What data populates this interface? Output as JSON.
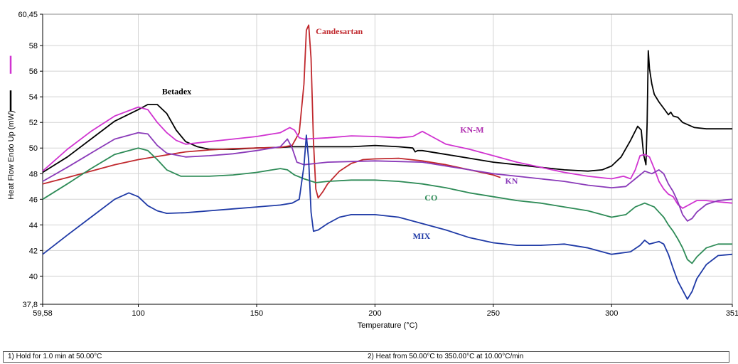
{
  "chart_data": {
    "type": "line",
    "xlabel": "Temperature (°C)",
    "ylabel": "Heat Flow Endo Up (mW)",
    "xlim": [
      59.58,
      351
    ],
    "ylim": [
      37.8,
      60.45
    ],
    "x_ticks": [
      "59,58",
      "100",
      "150",
      "200",
      "250",
      "300",
      "351"
    ],
    "y_ticks": [
      "37,8",
      "40",
      "42",
      "44",
      "46",
      "48",
      "50",
      "52",
      "54",
      "56",
      "58",
      "60,45"
    ],
    "grid": true,
    "legend": "left-side color swatches",
    "series": [
      {
        "name": "Betadex",
        "color": "#000000",
        "points": [
          [
            59.58,
            48.1
          ],
          [
            70,
            49.3
          ],
          [
            80,
            50.7
          ],
          [
            90,
            52.1
          ],
          [
            100,
            53.0
          ],
          [
            104,
            53.4
          ],
          [
            108,
            53.4
          ],
          [
            112,
            52.7
          ],
          [
            116,
            51.4
          ],
          [
            120,
            50.5
          ],
          [
            125,
            50.1
          ],
          [
            130,
            49.9
          ],
          [
            140,
            49.9
          ],
          [
            150,
            50.0
          ],
          [
            160,
            50.05
          ],
          [
            165,
            50.1
          ],
          [
            170,
            50.1
          ],
          [
            180,
            50.1
          ],
          [
            190,
            50.1
          ],
          [
            200,
            50.2
          ],
          [
            210,
            50.1
          ],
          [
            216,
            50.0
          ],
          [
            217,
            49.7
          ],
          [
            218,
            49.8
          ],
          [
            220,
            49.8
          ],
          [
            230,
            49.5
          ],
          [
            240,
            49.2
          ],
          [
            250,
            48.9
          ],
          [
            260,
            48.7
          ],
          [
            270,
            48.5
          ],
          [
            280,
            48.3
          ],
          [
            290,
            48.2
          ],
          [
            296,
            48.3
          ],
          [
            300,
            48.6
          ],
          [
            304,
            49.3
          ],
          [
            308,
            50.6
          ],
          [
            311,
            51.7
          ],
          [
            312.5,
            51.4
          ],
          [
            313.5,
            49.5
          ],
          [
            314.5,
            48.7
          ],
          [
            315,
            52.0
          ],
          [
            315.5,
            57.6
          ],
          [
            316,
            56.2
          ],
          [
            317,
            55.0
          ],
          [
            318,
            54.2
          ],
          [
            320,
            53.6
          ],
          [
            322,
            53.1
          ],
          [
            324,
            52.6
          ],
          [
            325,
            52.8
          ],
          [
            326,
            52.5
          ],
          [
            328,
            52.4
          ],
          [
            330,
            52.0
          ],
          [
            335,
            51.6
          ],
          [
            340,
            51.5
          ],
          [
            351,
            51.5
          ]
        ]
      },
      {
        "name": "Candesartan",
        "color": "#c0282d",
        "points": [
          [
            59.58,
            47.2
          ],
          [
            70,
            47.7
          ],
          [
            80,
            48.2
          ],
          [
            90,
            48.7
          ],
          [
            100,
            49.1
          ],
          [
            110,
            49.4
          ],
          [
            120,
            49.7
          ],
          [
            130,
            49.85
          ],
          [
            140,
            49.95
          ],
          [
            150,
            50.0
          ],
          [
            160,
            50.05
          ],
          [
            165,
            50.2
          ],
          [
            168,
            51.2
          ],
          [
            170,
            55.0
          ],
          [
            171,
            59.2
          ],
          [
            172,
            59.6
          ],
          [
            173,
            57.0
          ],
          [
            174,
            50.5
          ],
          [
            175,
            46.8
          ],
          [
            176,
            46.1
          ],
          [
            178,
            46.6
          ],
          [
            180,
            47.2
          ],
          [
            185,
            48.2
          ],
          [
            190,
            48.8
          ],
          [
            195,
            49.1
          ],
          [
            200,
            49.15
          ],
          [
            210,
            49.2
          ],
          [
            220,
            49.0
          ],
          [
            230,
            48.7
          ],
          [
            240,
            48.3
          ],
          [
            250,
            47.9
          ],
          [
            253,
            47.7
          ]
        ]
      },
      {
        "name": "KN-M",
        "color": "#d033d0",
        "points": [
          [
            59.58,
            48.2
          ],
          [
            70,
            49.9
          ],
          [
            80,
            51.3
          ],
          [
            90,
            52.5
          ],
          [
            100,
            53.2
          ],
          [
            104,
            53.0
          ],
          [
            108,
            52.0
          ],
          [
            112,
            51.2
          ],
          [
            116,
            50.6
          ],
          [
            120,
            50.3
          ],
          [
            130,
            50.5
          ],
          [
            140,
            50.7
          ],
          [
            150,
            50.9
          ],
          [
            160,
            51.2
          ],
          [
            164,
            51.6
          ],
          [
            166,
            51.4
          ],
          [
            168,
            50.8
          ],
          [
            170,
            50.7
          ],
          [
            180,
            50.8
          ],
          [
            190,
            50.95
          ],
          [
            200,
            50.9
          ],
          [
            210,
            50.8
          ],
          [
            216,
            50.9
          ],
          [
            220,
            51.3
          ],
          [
            224,
            50.9
          ],
          [
            230,
            50.3
          ],
          [
            240,
            49.9
          ],
          [
            250,
            49.4
          ],
          [
            260,
            48.9
          ],
          [
            270,
            48.5
          ],
          [
            280,
            48.1
          ],
          [
            290,
            47.8
          ],
          [
            300,
            47.6
          ],
          [
            305,
            47.8
          ],
          [
            308,
            47.6
          ],
          [
            310,
            48.3
          ],
          [
            312,
            49.4
          ],
          [
            314,
            49.5
          ],
          [
            316,
            49.3
          ],
          [
            318,
            48.4
          ],
          [
            320,
            47.4
          ],
          [
            322,
            46.8
          ],
          [
            324,
            46.4
          ],
          [
            326,
            46.2
          ],
          [
            328,
            45.6
          ],
          [
            330,
            45.3
          ],
          [
            333,
            45.6
          ],
          [
            336,
            45.9
          ],
          [
            340,
            45.9
          ],
          [
            345,
            45.8
          ],
          [
            351,
            45.7
          ]
        ]
      },
      {
        "name": "KN",
        "color": "#8a3ab9",
        "points": [
          [
            59.58,
            47.4
          ],
          [
            70,
            48.5
          ],
          [
            80,
            49.6
          ],
          [
            90,
            50.7
          ],
          [
            100,
            51.2
          ],
          [
            104,
            51.1
          ],
          [
            108,
            50.2
          ],
          [
            112,
            49.6
          ],
          [
            120,
            49.3
          ],
          [
            130,
            49.4
          ],
          [
            140,
            49.55
          ],
          [
            150,
            49.8
          ],
          [
            160,
            50.1
          ],
          [
            163,
            50.7
          ],
          [
            165,
            50.0
          ],
          [
            167,
            48.9
          ],
          [
            170,
            48.7
          ],
          [
            175,
            48.8
          ],
          [
            180,
            48.9
          ],
          [
            190,
            48.95
          ],
          [
            200,
            49.0
          ],
          [
            210,
            48.95
          ],
          [
            220,
            48.9
          ],
          [
            230,
            48.6
          ],
          [
            240,
            48.3
          ],
          [
            250,
            48.0
          ],
          [
            260,
            47.8
          ],
          [
            270,
            47.6
          ],
          [
            280,
            47.4
          ],
          [
            290,
            47.1
          ],
          [
            300,
            46.9
          ],
          [
            306,
            47.0
          ],
          [
            310,
            47.6
          ],
          [
            314,
            48.2
          ],
          [
            317,
            48.0
          ],
          [
            320,
            48.3
          ],
          [
            322,
            48.0
          ],
          [
            324,
            47.2
          ],
          [
            326,
            46.6
          ],
          [
            328,
            45.8
          ],
          [
            330,
            44.8
          ],
          [
            332,
            44.3
          ],
          [
            334,
            44.5
          ],
          [
            336,
            45.0
          ],
          [
            340,
            45.6
          ],
          [
            345,
            45.9
          ],
          [
            351,
            46.0
          ]
        ]
      },
      {
        "name": "CO",
        "color": "#2e8b57",
        "points": [
          [
            59.58,
            46.0
          ],
          [
            70,
            47.2
          ],
          [
            80,
            48.4
          ],
          [
            90,
            49.5
          ],
          [
            100,
            50.0
          ],
          [
            104,
            49.8
          ],
          [
            108,
            49.1
          ],
          [
            112,
            48.3
          ],
          [
            118,
            47.8
          ],
          [
            130,
            47.8
          ],
          [
            140,
            47.9
          ],
          [
            150,
            48.1
          ],
          [
            160,
            48.4
          ],
          [
            163,
            48.3
          ],
          [
            166,
            47.9
          ],
          [
            170,
            47.6
          ],
          [
            175,
            47.3
          ],
          [
            180,
            47.4
          ],
          [
            190,
            47.5
          ],
          [
            200,
            47.5
          ],
          [
            210,
            47.4
          ],
          [
            220,
            47.2
          ],
          [
            230,
            46.9
          ],
          [
            240,
            46.5
          ],
          [
            250,
            46.2
          ],
          [
            260,
            45.9
          ],
          [
            270,
            45.7
          ],
          [
            280,
            45.4
          ],
          [
            290,
            45.1
          ],
          [
            300,
            44.6
          ],
          [
            306,
            44.8
          ],
          [
            310,
            45.4
          ],
          [
            314,
            45.7
          ],
          [
            318,
            45.4
          ],
          [
            320,
            45.0
          ],
          [
            322,
            44.6
          ],
          [
            324,
            44.0
          ],
          [
            326,
            43.5
          ],
          [
            328,
            42.9
          ],
          [
            330,
            42.2
          ],
          [
            332,
            41.3
          ],
          [
            334,
            41.0
          ],
          [
            336,
            41.5
          ],
          [
            340,
            42.2
          ],
          [
            345,
            42.5
          ],
          [
            351,
            42.5
          ]
        ]
      },
      {
        "name": "MIX",
        "color": "#1f3aa6",
        "points": [
          [
            59.58,
            41.7
          ],
          [
            70,
            43.2
          ],
          [
            80,
            44.6
          ],
          [
            90,
            46.0
          ],
          [
            96,
            46.5
          ],
          [
            100,
            46.2
          ],
          [
            104,
            45.5
          ],
          [
            108,
            45.1
          ],
          [
            112,
            44.9
          ],
          [
            120,
            44.95
          ],
          [
            130,
            45.1
          ],
          [
            140,
            45.25
          ],
          [
            150,
            45.4
          ],
          [
            160,
            45.55
          ],
          [
            165,
            45.7
          ],
          [
            168,
            46.0
          ],
          [
            170,
            48.6
          ],
          [
            171,
            51.0
          ],
          [
            172,
            49.0
          ],
          [
            173,
            45.0
          ],
          [
            174,
            43.5
          ],
          [
            176,
            43.6
          ],
          [
            180,
            44.1
          ],
          [
            185,
            44.6
          ],
          [
            190,
            44.8
          ],
          [
            200,
            44.8
          ],
          [
            210,
            44.6
          ],
          [
            220,
            44.1
          ],
          [
            230,
            43.6
          ],
          [
            240,
            43.0
          ],
          [
            250,
            42.6
          ],
          [
            260,
            42.4
          ],
          [
            270,
            42.4
          ],
          [
            280,
            42.5
          ],
          [
            290,
            42.2
          ],
          [
            300,
            41.7
          ],
          [
            308,
            41.9
          ],
          [
            312,
            42.4
          ],
          [
            314,
            42.8
          ],
          [
            316,
            42.5
          ],
          [
            320,
            42.7
          ],
          [
            322,
            42.5
          ],
          [
            324,
            41.7
          ],
          [
            326,
            40.6
          ],
          [
            328,
            39.6
          ],
          [
            330,
            38.9
          ],
          [
            332,
            38.2
          ],
          [
            334,
            38.8
          ],
          [
            336,
            39.8
          ],
          [
            340,
            40.9
          ],
          [
            345,
            41.6
          ],
          [
            351,
            41.7
          ]
        ]
      }
    ],
    "labels": [
      {
        "text": "Betadex",
        "color": "#000000",
        "x": 110,
        "y": 54.2
      },
      {
        "text": "Candesartan",
        "color": "#c0282d",
        "x": 175,
        "y": 58.9
      },
      {
        "text": "KN-M",
        "color": "#b02fb0",
        "x": 236,
        "y": 51.2
      },
      {
        "text": "KN",
        "color": "#8a3ab9",
        "x": 255,
        "y": 47.2
      },
      {
        "text": "CO",
        "color": "#2e8b57",
        "x": 221,
        "y": 45.9
      },
      {
        "text": "MIX",
        "color": "#1f3aa6",
        "x": 216,
        "y": 42.9
      }
    ],
    "legend_swatches": [
      {
        "color": "#d033d0",
        "y_from": 55.8,
        "y_to": 57.2
      },
      {
        "color": "#000000",
        "y_from": 52.9,
        "y_to": 54.5
      }
    ]
  },
  "method": {
    "step1": "1)  Hold for 1.0 min at 50.00°C",
    "step2": "2)    Heat from 50.00°C to 350.00°C at 10.00°C/min"
  }
}
